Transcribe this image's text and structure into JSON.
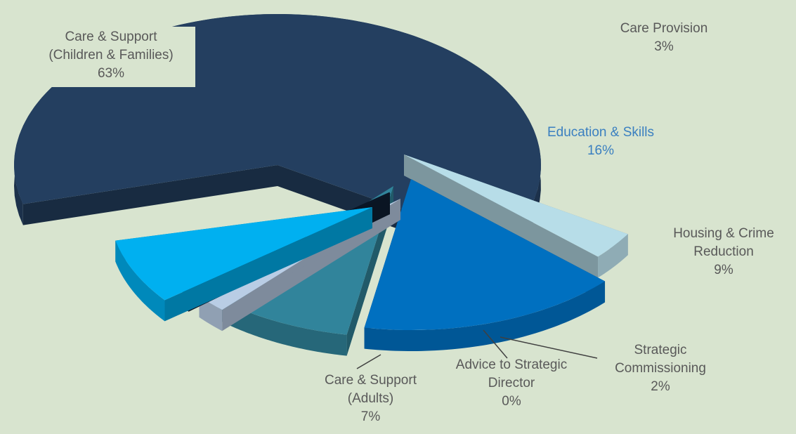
{
  "chart_data": {
    "type": "pie",
    "slices": [
      {
        "key": "cs_children",
        "label_line1": "Care & Support",
        "label_line2": "(Children & Families)",
        "value_label": "63%",
        "value": 63,
        "color": "#243f60"
      },
      {
        "key": "care_provision",
        "label_line1": "Care Provision",
        "label_line2": "",
        "value_label": "3%",
        "value": 3,
        "color": "#b7dde8"
      },
      {
        "key": "education",
        "label_line1": "Education & Skills",
        "label_line2": "",
        "value_label": "16%",
        "value": 16,
        "color": "#0070c0"
      },
      {
        "key": "housing",
        "label_line1": "Housing & Crime",
        "label_line2": "Reduction",
        "value_label": "9%",
        "value": 9,
        "color": "#31849b"
      },
      {
        "key": "strategic_comm",
        "label_line1": "Strategic",
        "label_line2": "Commissioning",
        "value_label": "2%",
        "value": 2,
        "color": "#b9cde5"
      },
      {
        "key": "advice",
        "label_line1": "Advice  to Strategic",
        "label_line2": "Director",
        "value_label": "0%",
        "value": 0,
        "color": "#0f1f33"
      },
      {
        "key": "cs_adults",
        "label_line1": "Care & Support",
        "label_line2": "(Adults)",
        "value_label": "7%",
        "value": 7,
        "color": "#00b0f0"
      }
    ]
  }
}
